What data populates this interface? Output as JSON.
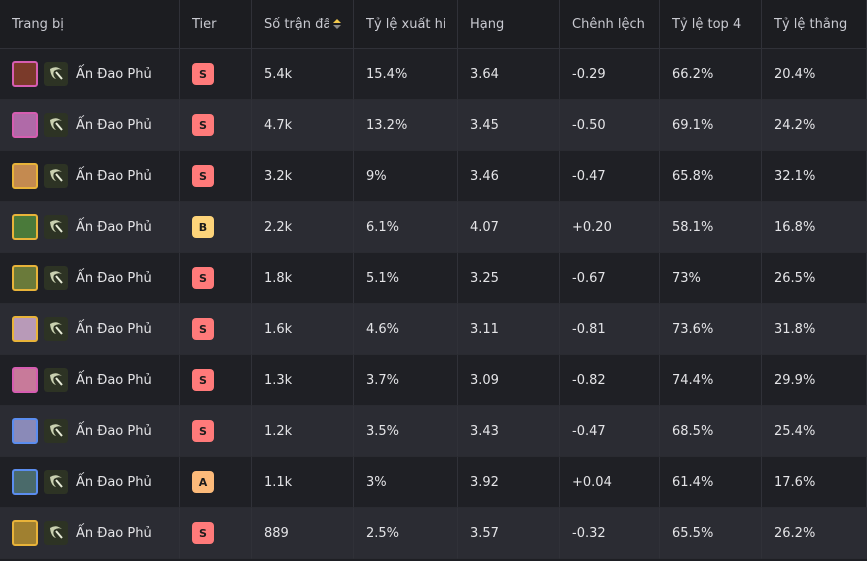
{
  "table": {
    "headers": [
      "Trang bị",
      "Tier",
      "Số trận đấu",
      "Tỷ lệ xuất hiện",
      "Hạng",
      "Chênh lệch hạng",
      "Tỷ lệ top 4",
      "Tỷ lệ thắng"
    ],
    "rows": [
      [
        "Ấn Đao Phủ",
        "S",
        "5.4k",
        "15.4%",
        "3.64",
        "-0.29",
        "66.2%",
        "20.4%"
      ],
      [
        "Ấn Đao Phủ",
        "S",
        "4.7k",
        "13.2%",
        "3.45",
        "-0.50",
        "69.1%",
        "24.2%"
      ],
      [
        "Ấn Đao Phủ",
        "S",
        "3.2k",
        "9%",
        "3.46",
        "-0.47",
        "65.8%",
        "32.1%"
      ],
      [
        "Ấn Đao Phủ",
        "B",
        "2.2k",
        "6.1%",
        "4.07",
        "+0.20",
        "58.1%",
        "16.8%"
      ],
      [
        "Ấn Đao Phủ",
        "S",
        "1.8k",
        "5.1%",
        "3.25",
        "-0.67",
        "73%",
        "26.5%"
      ],
      [
        "Ấn Đao Phủ",
        "S",
        "1.6k",
        "4.6%",
        "3.11",
        "-0.81",
        "73.6%",
        "31.8%"
      ],
      [
        "Ấn Đao Phủ",
        "S",
        "1.3k",
        "3.7%",
        "3.09",
        "-0.82",
        "74.4%",
        "29.9%"
      ],
      [
        "Ấn Đao Phủ",
        "S",
        "1.2k",
        "3.5%",
        "3.43",
        "-0.47",
        "68.5%",
        "25.4%"
      ],
      [
        "Ấn Đao Phủ",
        "A",
        "1.1k",
        "3%",
        "3.92",
        "+0.04",
        "61.4%",
        "17.6%"
      ],
      [
        "Ấn Đao Phủ",
        "S",
        "889",
        "2.5%",
        "3.57",
        "-0.32",
        "65.5%",
        "26.2%"
      ]
    ]
  }
}
